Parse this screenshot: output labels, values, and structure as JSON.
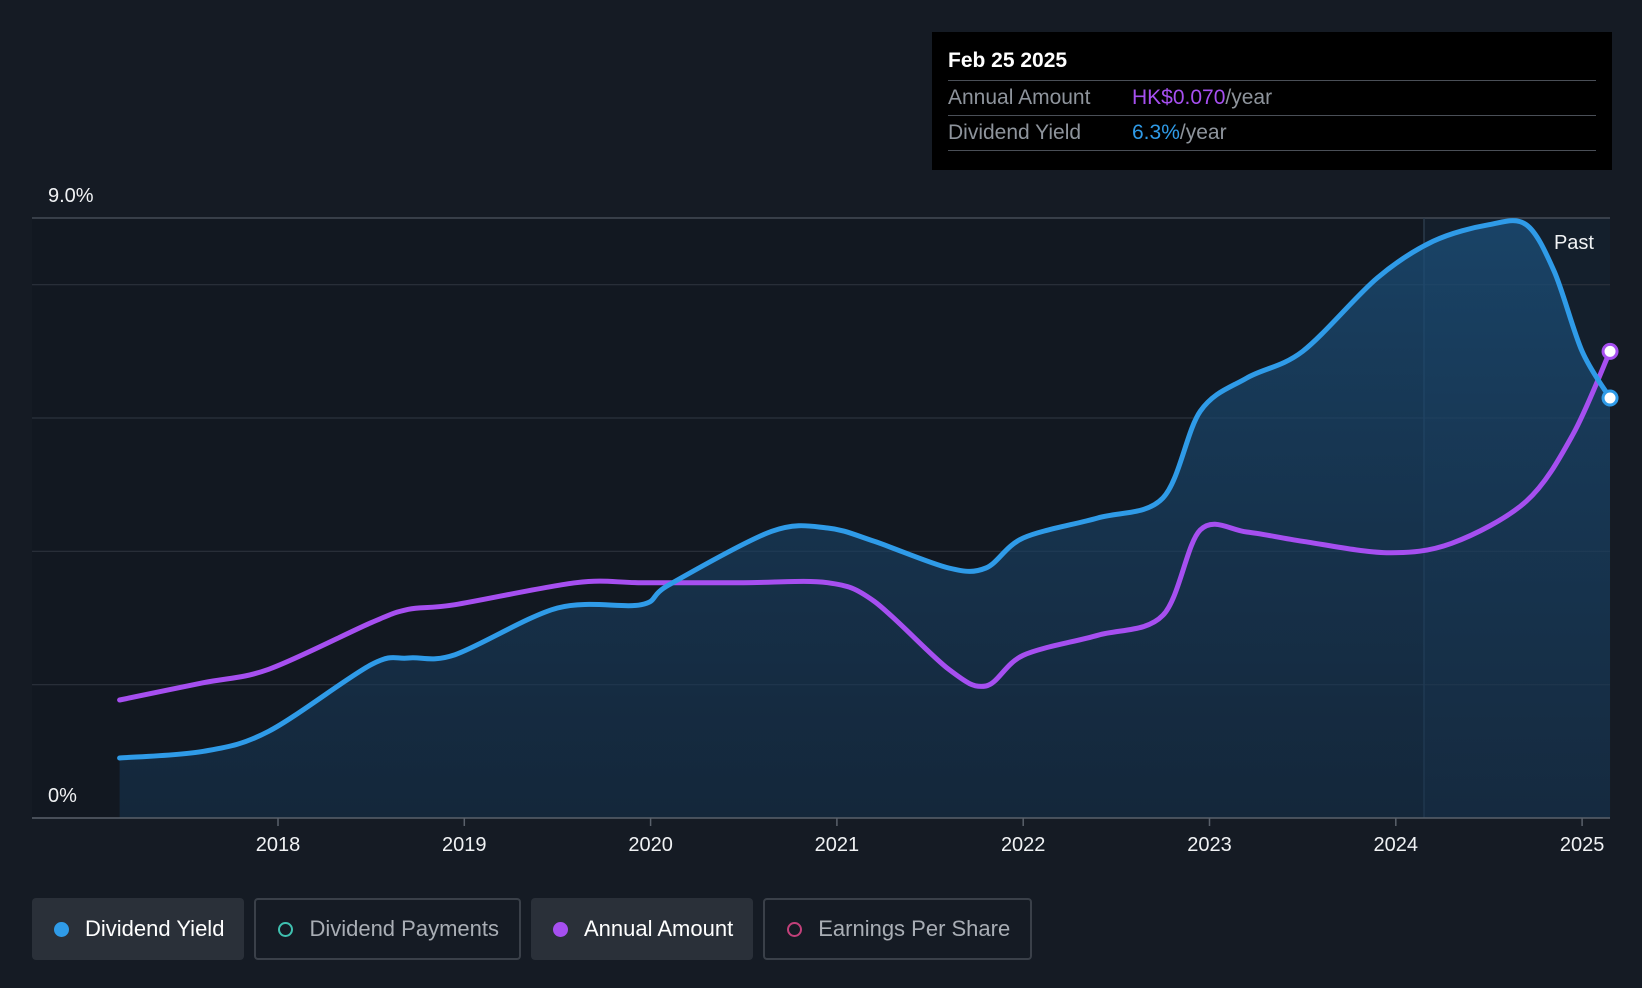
{
  "tooltip": {
    "date": "Feb 25 2025",
    "rows": [
      {
        "label": "Annual Amount",
        "value": "HK$0.070",
        "unit": "/year"
      },
      {
        "label": "Dividend Yield",
        "value": "6.3%",
        "unit": "/year"
      }
    ]
  },
  "past_label": "Past",
  "legend": [
    {
      "label": "Dividend Yield",
      "active": true,
      "color": "#2f9be8",
      "filled": true
    },
    {
      "label": "Dividend Payments",
      "active": false,
      "color": "#3fc1b0",
      "filled": false
    },
    {
      "label": "Annual Amount",
      "active": true,
      "color": "#a64ff0",
      "filled": true
    },
    {
      "label": "Earnings Per Share",
      "active": false,
      "color": "#c2407a",
      "filled": false
    }
  ],
  "colors": {
    "background": "#151b24",
    "dividend_yield": "#2f9be8",
    "annual_amount": "#a64ff0",
    "grid": "#3a414b"
  },
  "chart_data": {
    "type": "line",
    "x_ticks": [
      "2018",
      "2019",
      "2020",
      "2021",
      "2022",
      "2023",
      "2024",
      "2025"
    ],
    "y_tick_labels": [
      "9.0%",
      "0%"
    ],
    "ylim": [
      0,
      9.0
    ],
    "series": [
      {
        "name": "Dividend Yield",
        "unit": "%",
        "area": true,
        "x": [
          2017.15,
          2017.6,
          2017.95,
          2018.5,
          2018.7,
          2018.95,
          2019.5,
          2019.95,
          2020.1,
          2020.65,
          2020.95,
          2021.2,
          2021.6,
          2021.8,
          2022.0,
          2022.4,
          2022.75,
          2022.95,
          2023.2,
          2023.5,
          2023.9,
          2024.2,
          2024.5,
          2024.7,
          2024.85,
          2025.0,
          2025.15
        ],
        "y": [
          0.9,
          1.0,
          1.3,
          2.3,
          2.4,
          2.45,
          3.15,
          3.2,
          3.5,
          4.3,
          4.35,
          4.15,
          3.75,
          3.75,
          4.2,
          4.5,
          4.8,
          6.1,
          6.6,
          7.0,
          8.1,
          8.65,
          8.9,
          8.9,
          8.2,
          7.0,
          6.3
        ]
      },
      {
        "name": "Annual Amount",
        "unit": "HK$",
        "area": false,
        "x": [
          2017.15,
          2017.6,
          2017.95,
          2018.5,
          2018.7,
          2018.95,
          2019.6,
          2019.95,
          2020.5,
          2020.95,
          2021.2,
          2021.6,
          2021.8,
          2022.0,
          2022.4,
          2022.75,
          2022.95,
          2023.2,
          2023.5,
          2023.95,
          2024.3,
          2024.7,
          2024.95,
          2025.15
        ],
        "y": [
          0.0177,
          0.0203,
          0.0223,
          0.0293,
          0.0313,
          0.032,
          0.0353,
          0.0353,
          0.0353,
          0.0353,
          0.0325,
          0.0223,
          0.0198,
          0.0244,
          0.0274,
          0.0304,
          0.0432,
          0.0429,
          0.0415,
          0.0398,
          0.0412,
          0.0475,
          0.0575,
          0.07
        ],
        "ylim": [
          0,
          0.09
        ]
      }
    ],
    "forecast_label": "Past",
    "highlight_date": "Feb 25 2025",
    "grid": true,
    "legend_position": "bottom-left"
  }
}
